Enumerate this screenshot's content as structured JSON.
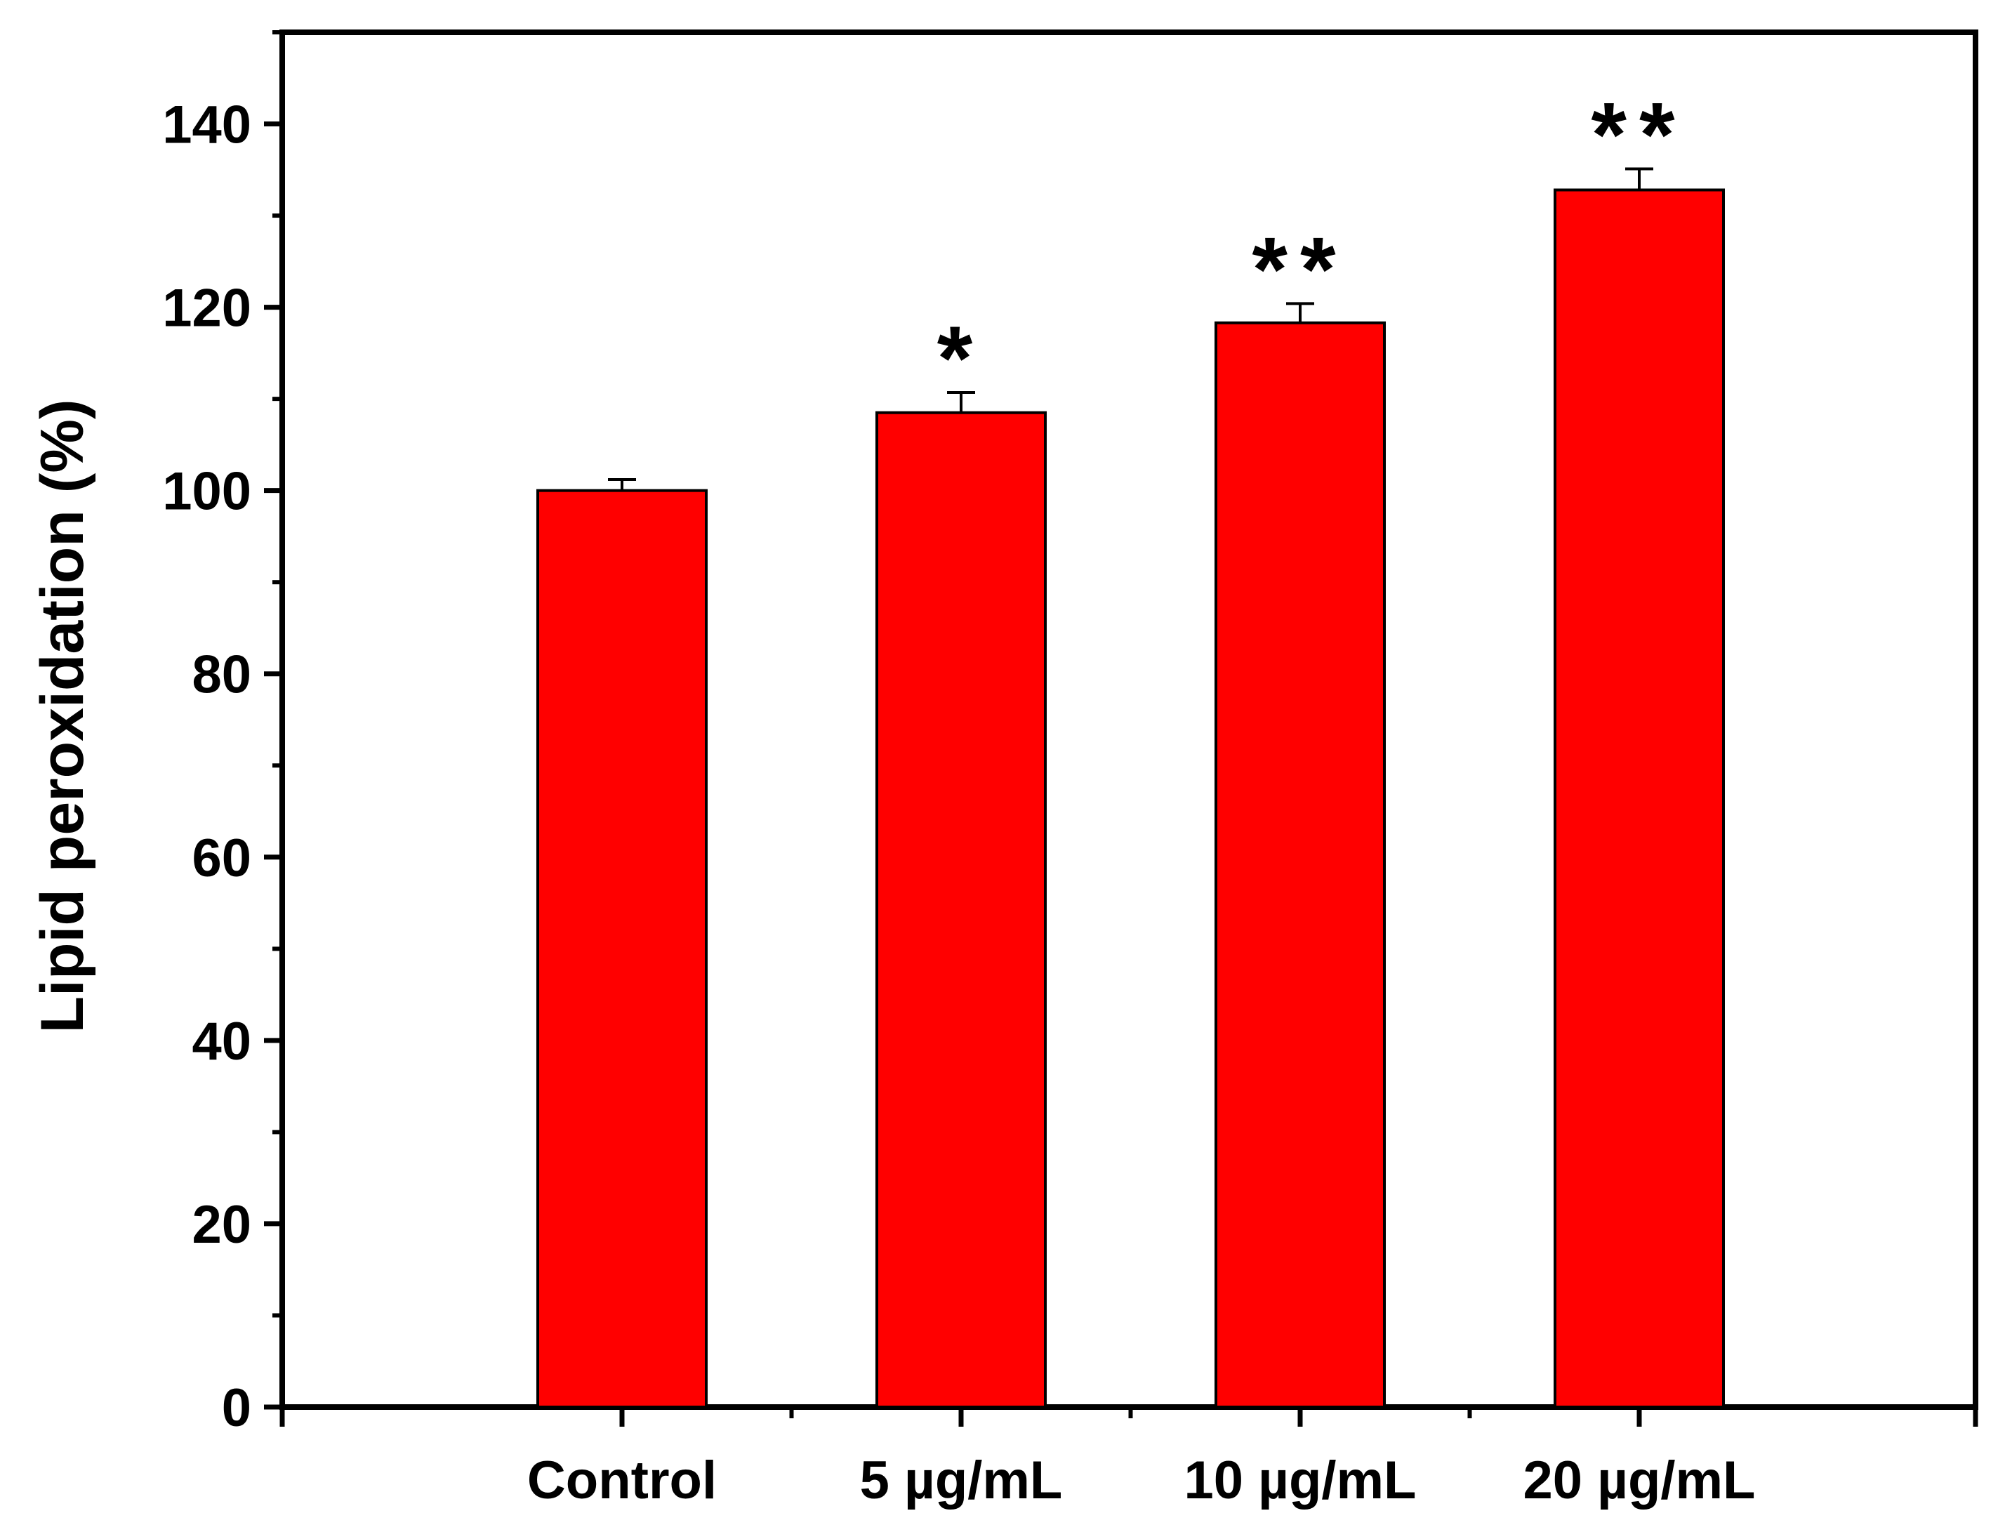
{
  "chart_data": {
    "type": "bar",
    "categories": [
      "Control",
      "5 µg/mL",
      "10 µg/mL",
      "20 µg/mL"
    ],
    "series": [
      {
        "values": [
          100,
          108.5,
          118.3,
          132.8
        ],
        "errors": [
          1.2,
          2.2,
          2.1,
          2.3
        ]
      }
    ],
    "significance": [
      "",
      "*",
      "**",
      "**"
    ],
    "title": "",
    "xlabel": "",
    "ylabel": "Lipid peroxidation (%)",
    "ylim": [
      0,
      150
    ],
    "yticks": [
      0,
      20,
      40,
      60,
      80,
      100,
      120,
      140
    ],
    "grid": false,
    "bar_color": "#ff0000",
    "edge_color": "#000000"
  }
}
